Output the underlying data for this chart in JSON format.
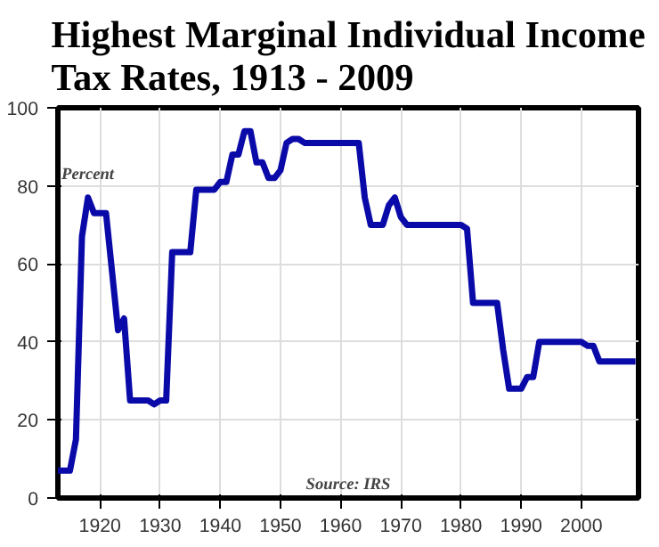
{
  "chart_data": {
    "type": "line",
    "title": "Highest Marginal Individual Income Tax Rates, 1913 - 2009",
    "x": [
      1913,
      1914,
      1915,
      1916,
      1917,
      1918,
      1919,
      1920,
      1921,
      1922,
      1923,
      1924,
      1925,
      1926,
      1927,
      1928,
      1929,
      1930,
      1931,
      1932,
      1933,
      1934,
      1935,
      1936,
      1937,
      1938,
      1939,
      1940,
      1941,
      1942,
      1943,
      1944,
      1945,
      1946,
      1947,
      1948,
      1949,
      1950,
      1951,
      1952,
      1953,
      1954,
      1955,
      1956,
      1957,
      1958,
      1959,
      1960,
      1961,
      1962,
      1963,
      1964,
      1965,
      1966,
      1967,
      1968,
      1969,
      1970,
      1971,
      1972,
      1973,
      1974,
      1975,
      1976,
      1977,
      1978,
      1979,
      1980,
      1981,
      1982,
      1983,
      1984,
      1985,
      1986,
      1987,
      1988,
      1989,
      1990,
      1991,
      1992,
      1993,
      1994,
      1995,
      1996,
      1997,
      1998,
      1999,
      2000,
      2001,
      2002,
      2003,
      2004,
      2005,
      2006,
      2007,
      2008,
      2009
    ],
    "series": [
      {
        "color": "#0a0aa8",
        "values": [
          7,
          7,
          7,
          15,
          67,
          77,
          73,
          73,
          73,
          58,
          43,
          46,
          25,
          25,
          25,
          25,
          24,
          25,
          25,
          63,
          63,
          63,
          63,
          79,
          79,
          79,
          79,
          81,
          81,
          88,
          88,
          94,
          94,
          86,
          86,
          82,
          82,
          84,
          91,
          92,
          92,
          91,
          91,
          91,
          91,
          91,
          91,
          91,
          91,
          91,
          91,
          77,
          70,
          70,
          70,
          75,
          77,
          72,
          70,
          70,
          70,
          70,
          70,
          70,
          70,
          70,
          70,
          70,
          69,
          50,
          50,
          50,
          50,
          50,
          38,
          28,
          28,
          28,
          31,
          31,
          40,
          40,
          40,
          40,
          40,
          40,
          40,
          40,
          39,
          39,
          35,
          35,
          35,
          35,
          35,
          35,
          35
        ]
      }
    ],
    "xlim": [
      1913,
      2009.5
    ],
    "ylim": [
      0,
      100
    ],
    "xticks": [
      1920,
      1930,
      1940,
      1950,
      1960,
      1970,
      1980,
      1990,
      2000
    ],
    "yticks": [
      0,
      20,
      40,
      60,
      80,
      100
    ],
    "grid": true,
    "line_style": "solid",
    "annotations": [
      "Percent",
      "Source: IRS"
    ]
  }
}
